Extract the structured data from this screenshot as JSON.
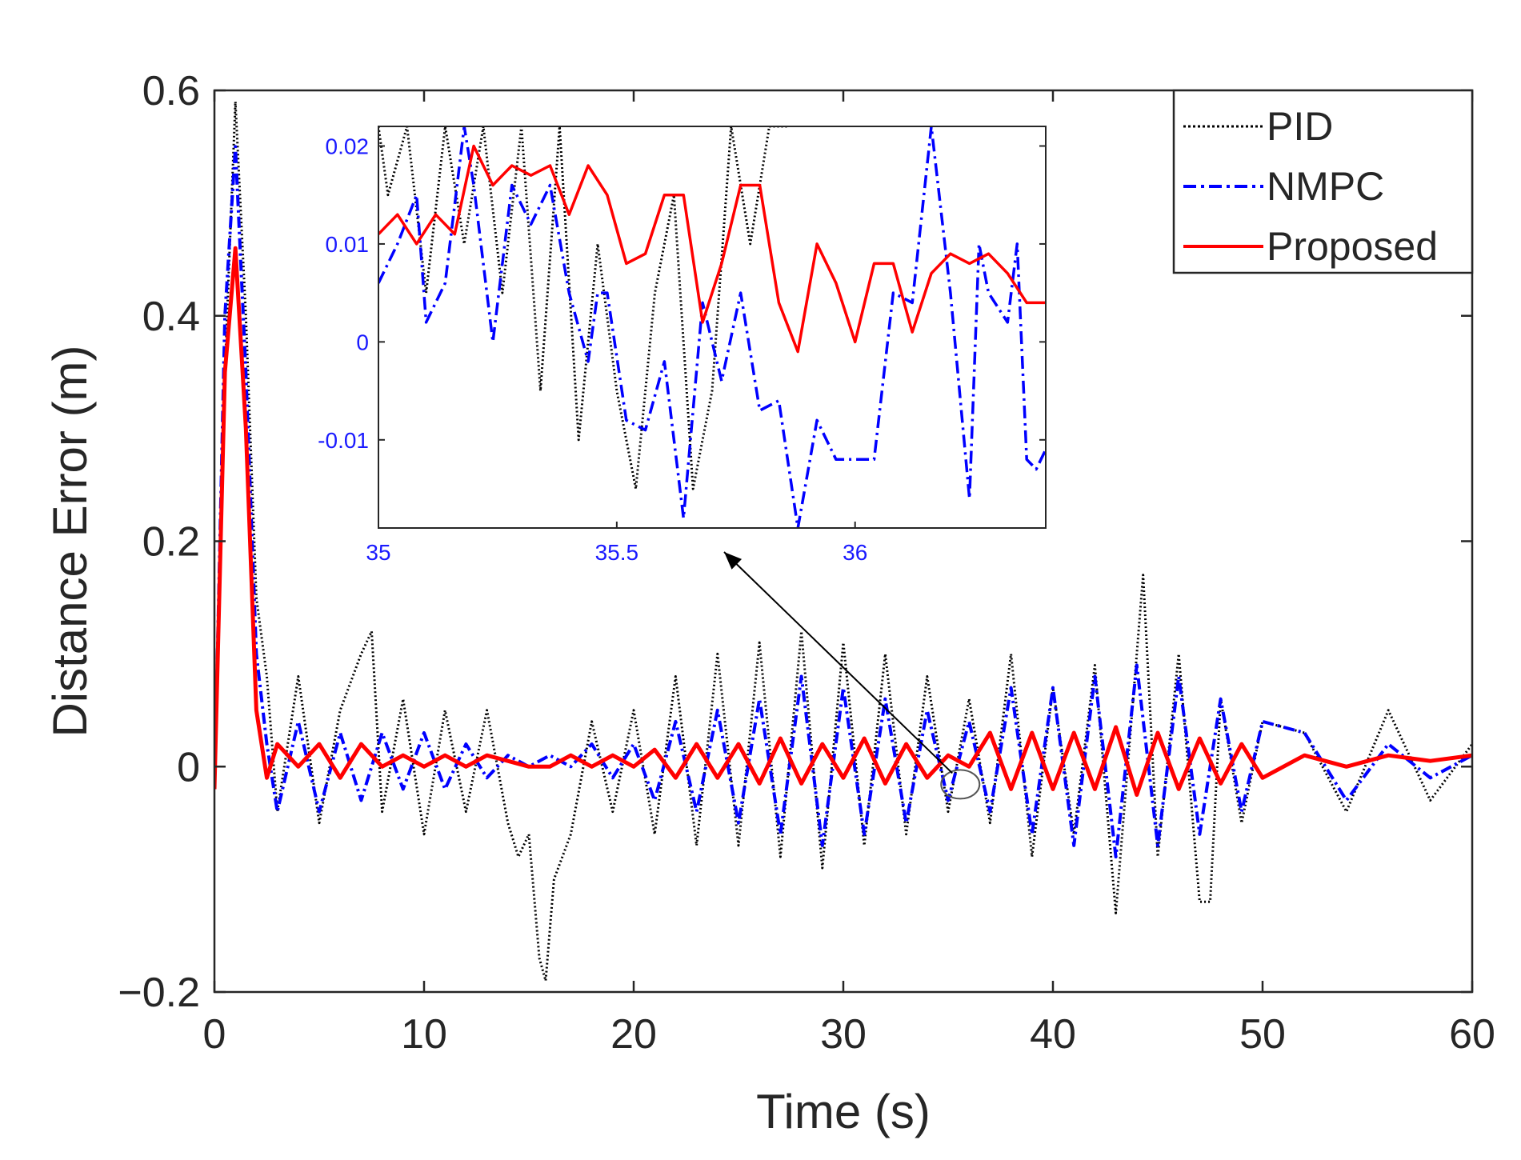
{
  "chart_data": {
    "type": "line",
    "title": "",
    "xlabel": "Time (s)",
    "ylabel": "Distance Error (m)",
    "xlim": [
      0,
      60
    ],
    "ylim": [
      -0.2,
      0.6
    ],
    "xticks": [
      0,
      10,
      20,
      30,
      40,
      50,
      60
    ],
    "xtick_labels": [
      "0",
      "10",
      "20",
      "30",
      "40",
      "50",
      "60"
    ],
    "yticks": [
      -0.2,
      0,
      0.2,
      0.4,
      0.6
    ],
    "ytick_labels": [
      "−0.2",
      "0",
      "0.2",
      "0.4",
      "0.6"
    ],
    "grid": false,
    "legend_position": "top-right",
    "series": [
      {
        "name": "PID",
        "color": "#000000",
        "style": "dotted",
        "x": [
          0,
          0.5,
          1.0,
          1.5,
          2.0,
          2.5,
          3,
          4,
          5,
          6,
          7,
          7.5,
          8,
          9,
          10,
          11,
          12,
          13,
          14,
          14.5,
          15,
          15.5,
          15.8,
          16.2,
          17,
          18,
          19,
          20,
          21,
          22,
          23,
          24,
          25,
          26,
          27,
          28,
          29,
          30,
          31,
          32,
          33,
          34,
          35,
          36,
          37,
          38,
          39,
          40,
          41,
          42,
          43,
          44,
          44.3,
          45,
          46,
          47,
          47.5,
          48,
          49,
          50,
          52,
          54,
          56,
          58,
          60
        ],
        "y": [
          -0.02,
          0.35,
          0.59,
          0.4,
          0.15,
          0.08,
          -0.04,
          0.08,
          -0.05,
          0.05,
          0.1,
          0.12,
          -0.04,
          0.06,
          -0.06,
          0.05,
          -0.04,
          0.05,
          -0.05,
          -0.08,
          -0.06,
          -0.17,
          -0.19,
          -0.1,
          -0.06,
          0.04,
          -0.04,
          0.05,
          -0.06,
          0.08,
          -0.07,
          0.1,
          -0.07,
          0.11,
          -0.08,
          0.12,
          -0.09,
          0.11,
          -0.07,
          0.1,
          -0.06,
          0.08,
          -0.04,
          0.06,
          -0.05,
          0.1,
          -0.08,
          0.07,
          -0.06,
          0.09,
          -0.13,
          0.1,
          0.17,
          -0.08,
          0.1,
          -0.12,
          -0.12,
          0.06,
          -0.05,
          0.04,
          0.03,
          -0.04,
          0.05,
          -0.03,
          0.02
        ]
      },
      {
        "name": "NMPC",
        "color": "#0000ff",
        "style": "dashdot",
        "x": [
          0,
          0.5,
          1.0,
          1.5,
          2.0,
          2.5,
          3,
          4,
          5,
          6,
          7,
          8,
          9,
          10,
          11,
          12,
          13,
          14,
          15,
          16,
          17,
          18,
          19,
          20,
          21,
          22,
          23,
          24,
          25,
          26,
          27,
          28,
          29,
          30,
          31,
          32,
          33,
          34,
          35,
          36,
          37,
          38,
          39,
          40,
          41,
          42,
          43,
          44,
          45,
          46,
          47,
          48,
          49,
          50,
          52,
          54,
          56,
          58,
          60
        ],
        "y": [
          -0.02,
          0.4,
          0.55,
          0.35,
          0.1,
          0.02,
          -0.04,
          0.04,
          -0.04,
          0.03,
          -0.03,
          0.03,
          -0.02,
          0.03,
          -0.02,
          0.02,
          -0.01,
          0.01,
          0.0,
          0.01,
          0.0,
          0.02,
          -0.01,
          0.02,
          -0.03,
          0.04,
          -0.04,
          0.05,
          -0.05,
          0.06,
          -0.06,
          0.08,
          -0.07,
          0.07,
          -0.06,
          0.06,
          -0.05,
          0.05,
          -0.03,
          0.04,
          -0.04,
          0.07,
          -0.06,
          0.07,
          -0.07,
          0.08,
          -0.08,
          0.09,
          -0.07,
          0.08,
          -0.06,
          0.06,
          -0.04,
          0.04,
          0.03,
          -0.03,
          0.02,
          -0.01,
          0.01
        ]
      },
      {
        "name": "Proposed",
        "color": "#ff0000",
        "style": "solid",
        "x": [
          0,
          0.5,
          1.0,
          1.5,
          2.0,
          2.5,
          3,
          4,
          5,
          6,
          7,
          8,
          9,
          10,
          11,
          12,
          13,
          14,
          15,
          16,
          17,
          18,
          19,
          20,
          21,
          22,
          23,
          24,
          25,
          26,
          27,
          28,
          29,
          30,
          31,
          32,
          33,
          34,
          35,
          36,
          37,
          38,
          39,
          40,
          41,
          42,
          43,
          44,
          45,
          46,
          47,
          48,
          49,
          50,
          52,
          54,
          56,
          58,
          60
        ],
        "y": [
          -0.02,
          0.35,
          0.46,
          0.3,
          0.05,
          -0.01,
          0.02,
          0.0,
          0.02,
          -0.01,
          0.02,
          0.0,
          0.01,
          0.0,
          0.01,
          0.0,
          0.01,
          0.005,
          0.0,
          0.0,
          0.01,
          0.0,
          0.01,
          0.0,
          0.015,
          -0.01,
          0.02,
          -0.01,
          0.02,
          -0.015,
          0.025,
          -0.015,
          0.02,
          -0.01,
          0.025,
          -0.015,
          0.02,
          -0.01,
          0.01,
          0.0,
          0.03,
          -0.02,
          0.03,
          -0.02,
          0.03,
          -0.02,
          0.035,
          -0.025,
          0.03,
          -0.02,
          0.025,
          -0.015,
          0.02,
          -0.01,
          0.01,
          0.0,
          0.01,
          0.005,
          0.01
        ]
      }
    ],
    "inset": {
      "xlim": [
        35,
        36.4
      ],
      "ylim": [
        -0.019,
        0.022
      ],
      "xticks": [
        35,
        35.5,
        36
      ],
      "xtick_labels": [
        "35",
        "35.5",
        "36"
      ],
      "yticks": [
        -0.01,
        0,
        0.01,
        0.02
      ],
      "ytick_labels": [
        "-0.01",
        "0",
        "0.01",
        "0.02"
      ],
      "arrow_target": [
        35.2,
        -0.02
      ],
      "series": [
        {
          "name": "PID",
          "color": "#000000",
          "style": "dotted",
          "x": [
            35.0,
            35.02,
            35.06,
            35.1,
            35.14,
            35.18,
            35.22,
            35.26,
            35.3,
            35.34,
            35.38,
            35.42,
            35.46,
            35.5,
            35.54,
            35.58,
            35.62,
            35.66,
            35.7,
            35.74,
            35.78,
            35.82,
            35.86
          ],
          "y": [
            0.022,
            0.015,
            0.022,
            0.005,
            0.022,
            0.01,
            0.022,
            0.005,
            0.022,
            -0.005,
            0.022,
            -0.01,
            0.01,
            -0.005,
            -0.015,
            0.005,
            0.015,
            -0.015,
            -0.005,
            0.022,
            0.01,
            0.022,
            0.022
          ]
        },
        {
          "name": "NMPC",
          "color": "#0000ff",
          "style": "dashdot",
          "x": [
            35.0,
            35.04,
            35.08,
            35.1,
            35.14,
            35.18,
            35.2,
            35.24,
            35.28,
            35.32,
            35.36,
            35.4,
            35.44,
            35.46,
            35.48,
            35.52,
            35.56,
            35.6,
            35.64,
            35.68,
            35.72,
            35.76,
            35.8,
            35.84,
            35.88,
            35.92,
            35.96,
            36.0,
            36.04,
            36.08,
            36.12,
            36.16,
            36.2,
            36.24,
            36.26,
            36.28,
            36.32,
            36.34,
            36.36,
            36.38,
            36.4
          ],
          "y": [
            0.006,
            0.01,
            0.015,
            0.002,
            0.006,
            0.022,
            0.016,
            0.0,
            0.016,
            0.012,
            0.016,
            0.005,
            -0.002,
            0.005,
            0.005,
            -0.008,
            -0.009,
            -0.002,
            -0.018,
            0.004,
            -0.004,
            0.005,
            -0.007,
            -0.006,
            -0.019,
            -0.008,
            -0.012,
            -0.012,
            -0.012,
            0.005,
            0.004,
            0.022,
            0.005,
            -0.016,
            0.01,
            0.005,
            0.002,
            0.01,
            -0.012,
            -0.013,
            -0.011
          ]
        },
        {
          "name": "Proposed",
          "color": "#ff0000",
          "style": "solid",
          "x": [
            35.0,
            35.04,
            35.08,
            35.12,
            35.16,
            35.2,
            35.24,
            35.28,
            35.32,
            35.36,
            35.4,
            35.44,
            35.48,
            35.52,
            35.56,
            35.6,
            35.64,
            35.68,
            35.72,
            35.76,
            35.8,
            35.84,
            35.88,
            35.92,
            35.96,
            36.0,
            36.04,
            36.08,
            36.12,
            36.16,
            36.2,
            36.24,
            36.28,
            36.32,
            36.36,
            36.4
          ],
          "y": [
            0.011,
            0.013,
            0.01,
            0.013,
            0.011,
            0.02,
            0.016,
            0.018,
            0.017,
            0.018,
            0.013,
            0.018,
            0.015,
            0.008,
            0.009,
            0.015,
            0.015,
            0.002,
            0.008,
            0.016,
            0.016,
            0.004,
            -0.001,
            0.01,
            0.006,
            0.0,
            0.008,
            0.008,
            0.001,
            0.007,
            0.009,
            0.008,
            0.009,
            0.007,
            0.004,
            0.004
          ]
        }
      ]
    }
  }
}
